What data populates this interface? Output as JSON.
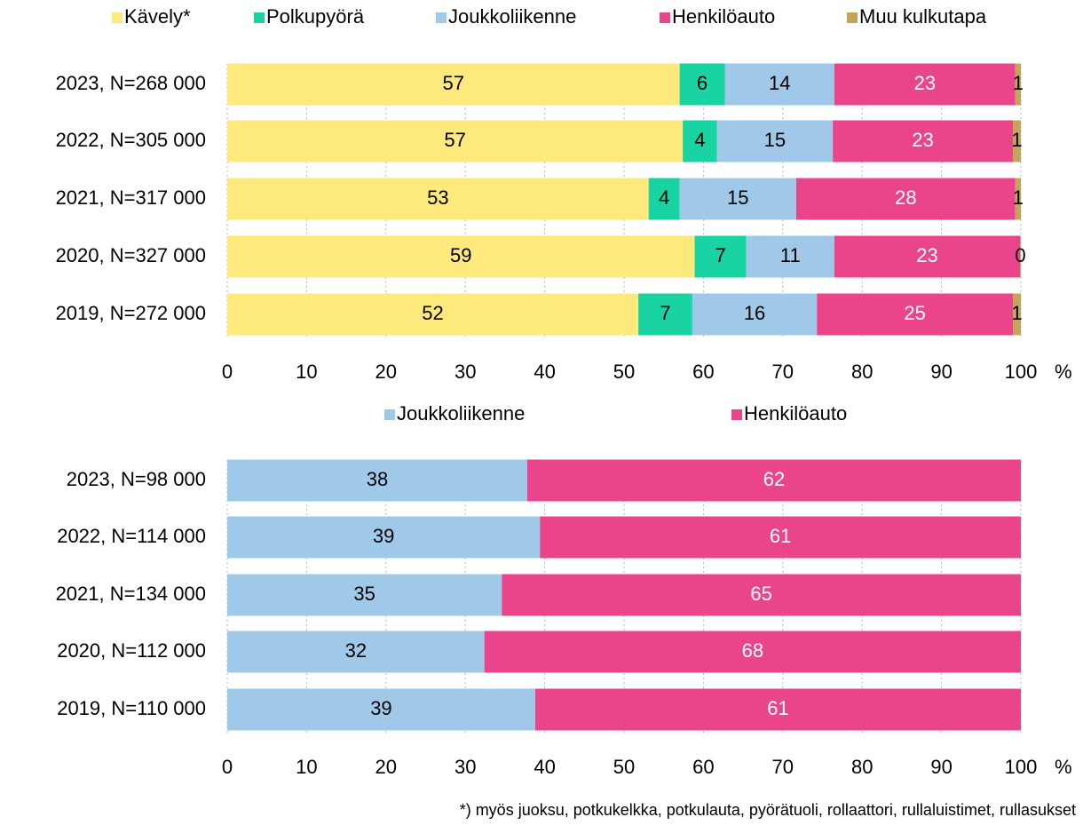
{
  "chart_data": [
    {
      "type": "stacked-barh",
      "categories": [
        "2023, N=268 000",
        "2022, N=305 000",
        "2021, N=317 000",
        "2020, N=327 000",
        "2019, N=272 000"
      ],
      "series": [
        {
          "name": "Kävely*",
          "color": "#fde97c",
          "values": [
            57.0,
            57.4,
            53.1,
            58.9,
            51.8
          ],
          "value_labels": [
            "57",
            "57",
            "53",
            "59",
            "52"
          ]
        },
        {
          "name": "Polkupyörä",
          "color": "#19d3a2",
          "values": [
            5.7,
            4.3,
            3.9,
            6.5,
            6.8
          ],
          "value_labels": [
            "6",
            "4",
            "4",
            "7",
            "7"
          ]
        },
        {
          "name": "Joukkoliikenne",
          "color": "#a0c8e9",
          "values": [
            13.8,
            14.6,
            14.7,
            11.1,
            15.7
          ],
          "value_labels": [
            "14",
            "15",
            "15",
            "11",
            "16"
          ]
        },
        {
          "name": "Henkilöauto",
          "color": "#ea458b",
          "values": [
            22.8,
            22.7,
            27.6,
            23.4,
            24.7
          ],
          "value_labels": [
            "23",
            "23",
            "28",
            "23",
            "25"
          ]
        },
        {
          "name": "Muu kulkutapa",
          "color": "#c4a45a",
          "values": [
            0.7,
            1.0,
            0.7,
            0.1,
            1.0
          ],
          "value_labels": [
            "1",
            "1",
            "1",
            "0",
            "1"
          ]
        }
      ],
      "xlim": [
        0,
        100
      ],
      "xticks": [
        0,
        10,
        20,
        30,
        40,
        50,
        60,
        70,
        80,
        90,
        100
      ],
      "xlabel": "%",
      "grid": true,
      "legend": "top"
    },
    {
      "type": "stacked-barh",
      "categories": [
        "2023, N=98 000",
        "2022, N=114 000",
        "2021, N=134 000",
        "2020, N=112 000",
        "2019, N=110 000"
      ],
      "series": [
        {
          "name": "Joukkoliikenne",
          "color": "#a0c8e9",
          "values": [
            37.8,
            39.4,
            34.6,
            32.4,
            38.8
          ],
          "value_labels": [
            "38",
            "39",
            "35",
            "32",
            "39"
          ]
        },
        {
          "name": "Henkilöauto",
          "color": "#ea458b",
          "values": [
            62.2,
            60.6,
            65.4,
            67.6,
            61.2
          ],
          "value_labels": [
            "62",
            "61",
            "65",
            "68",
            "61"
          ]
        }
      ],
      "xlim": [
        0,
        100
      ],
      "xticks": [
        0,
        10,
        20,
        30,
        40,
        50,
        60,
        70,
        80,
        90,
        100
      ],
      "xlabel": "%",
      "grid": true,
      "legend": "top"
    }
  ],
  "footnote": "*) myös juoksu, potkukelkka, potkulauta, pyörätuoli, rollaattori, rullaluistimet, rullasukset"
}
